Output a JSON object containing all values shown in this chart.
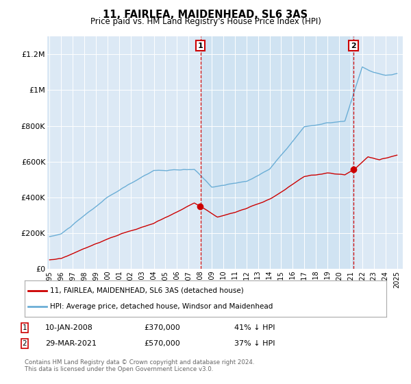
{
  "title": "11, FAIRLEA, MAIDENHEAD, SL6 3AS",
  "subtitle": "Price paid vs. HM Land Registry's House Price Index (HPI)",
  "ylim": [
    0,
    1300000
  ],
  "yticks": [
    0,
    200000,
    400000,
    600000,
    800000,
    1000000,
    1200000
  ],
  "ytick_labels": [
    "£0",
    "£200K",
    "£400K",
    "£600K",
    "£800K",
    "£1M",
    "£1.2M"
  ],
  "background_color": "#ffffff",
  "plot_bg_color": "#dce9f5",
  "shade_color": "#c8dff0",
  "hpi_color": "#6baed6",
  "price_color": "#cc0000",
  "sale1_year": 2008.03,
  "sale1_price_val": 370000,
  "sale2_year": 2021.25,
  "sale2_price_val": 570000,
  "sale1_label": "10-JAN-2008",
  "sale1_price": "£370,000",
  "sale1_pct": "41% ↓ HPI",
  "sale2_label": "29-MAR-2021",
  "sale2_price": "£570,000",
  "sale2_pct": "37% ↓ HPI",
  "legend_line1": "11, FAIRLEA, MAIDENHEAD, SL6 3AS (detached house)",
  "legend_line2": "HPI: Average price, detached house, Windsor and Maidenhead",
  "footer": "Contains HM Land Registry data © Crown copyright and database right 2024.\nThis data is licensed under the Open Government Licence v3.0.",
  "xtick_labels": [
    "1995",
    "1996",
    "1997",
    "1998",
    "1999",
    "2000",
    "2001",
    "2002",
    "2003",
    "2004",
    "2005",
    "2006",
    "2007",
    "2008",
    "2009",
    "2010",
    "2011",
    "2012",
    "2013",
    "2014",
    "2015",
    "2016",
    "2017",
    "2018",
    "2019",
    "2020",
    "2021",
    "2022",
    "2023",
    "2024",
    "2025"
  ]
}
